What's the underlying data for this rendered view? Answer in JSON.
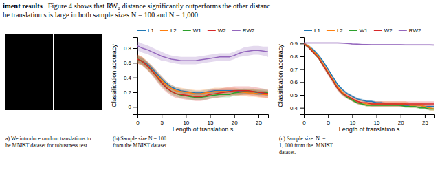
{
  "annotations": [
    "iment results",
    "   Figure 4 shows that RW₂ distance significantly outperforms the other distanc",
    "he translation s is large in both sample sizes N = 100 and N = 1,000.",
    "a) We introduce random translations to",
    "he MNIST dataset for robustness test."
  ],
  "chart_data": [
    {
      "type": "line",
      "xlabel": "Length of translation s",
      "ylabel": "Classification accuracy",
      "annotations": [
        "(b) Sample size N = 100",
        "from the MNIST dataset."
      ],
      "legend": "top",
      "xlim": [
        0,
        27
      ],
      "xticks": [
        0,
        5,
        10,
        15,
        20,
        25
      ],
      "ylim": [
        -0.1,
        0.95
      ],
      "yticks": [
        0,
        0.2,
        0.4,
        0.6,
        0.8
      ],
      "x": [
        0,
        1,
        2,
        3,
        4,
        5,
        6,
        7,
        8,
        9,
        10,
        11,
        12,
        13,
        14,
        15,
        16,
        17,
        18,
        19,
        20,
        21,
        22,
        23,
        24,
        25,
        26,
        27
      ],
      "series": [
        {
          "name": "L1",
          "values": [
            0.65,
            0.62,
            0.58,
            0.52,
            0.45,
            0.38,
            0.32,
            0.27,
            0.24,
            0.22,
            0.21,
            0.2,
            0.19,
            0.19,
            0.2,
            0.21,
            0.22,
            0.22,
            0.22,
            0.22,
            0.22,
            0.21,
            0.21,
            0.2,
            0.2,
            0.19,
            0.19,
            0.18
          ],
          "std": [
            0.04,
            0.04,
            0.04,
            0.04,
            0.04,
            0.04,
            0.03,
            0.03,
            0.03,
            0.03,
            0.03,
            0.03,
            0.03,
            0.03,
            0.03,
            0.03,
            0.03,
            0.03,
            0.03,
            0.03,
            0.03,
            0.03,
            0.03,
            0.03,
            0.03,
            0.03,
            0.03,
            0.03
          ]
        },
        {
          "name": "L2",
          "values": [
            0.65,
            0.62,
            0.57,
            0.5,
            0.43,
            0.36,
            0.3,
            0.25,
            0.22,
            0.21,
            0.2,
            0.19,
            0.18,
            0.18,
            0.19,
            0.2,
            0.21,
            0.21,
            0.21,
            0.21,
            0.21,
            0.2,
            0.2,
            0.19,
            0.19,
            0.18,
            0.17,
            0.17
          ],
          "std": [
            0.06,
            0.06,
            0.06,
            0.06,
            0.06,
            0.06,
            0.05,
            0.05,
            0.05,
            0.05,
            0.05,
            0.05,
            0.05,
            0.05,
            0.05,
            0.05,
            0.05,
            0.05,
            0.05,
            0.05,
            0.05,
            0.05,
            0.05,
            0.05,
            0.05,
            0.05,
            0.05,
            0.05
          ]
        },
        {
          "name": "W1",
          "values": [
            0.65,
            0.62,
            0.56,
            0.49,
            0.41,
            0.33,
            0.26,
            0.21,
            0.18,
            0.16,
            0.15,
            0.14,
            0.13,
            0.13,
            0.14,
            0.15,
            0.16,
            0.17,
            0.17,
            0.17,
            0.19,
            0.2,
            0.21,
            0.21,
            0.21,
            0.2,
            0.2,
            0.19
          ],
          "std": [
            0.05,
            0.05,
            0.05,
            0.05,
            0.05,
            0.05,
            0.04,
            0.04,
            0.04,
            0.04,
            0.04,
            0.04,
            0.04,
            0.04,
            0.04,
            0.04,
            0.04,
            0.04,
            0.04,
            0.04,
            0.04,
            0.04,
            0.04,
            0.04,
            0.04,
            0.04,
            0.04,
            0.04
          ]
        },
        {
          "name": "W2",
          "values": [
            0.65,
            0.62,
            0.56,
            0.49,
            0.41,
            0.33,
            0.26,
            0.21,
            0.18,
            0.17,
            0.16,
            0.15,
            0.14,
            0.14,
            0.15,
            0.17,
            0.18,
            0.19,
            0.2,
            0.21,
            0.22,
            0.22,
            0.22,
            0.22,
            0.21,
            0.2,
            0.19,
            0.18
          ],
          "std": [
            0.06,
            0.06,
            0.06,
            0.06,
            0.07,
            0.07,
            0.06,
            0.06,
            0.06,
            0.06,
            0.06,
            0.06,
            0.06,
            0.06,
            0.06,
            0.06,
            0.06,
            0.06,
            0.06,
            0.06,
            0.06,
            0.06,
            0.06,
            0.06,
            0.06,
            0.06,
            0.06,
            0.06
          ]
        },
        {
          "name": "RW2",
          "values": [
            0.83,
            0.8,
            0.78,
            0.75,
            0.72,
            0.69,
            0.67,
            0.65,
            0.64,
            0.63,
            0.63,
            0.63,
            0.63,
            0.64,
            0.65,
            0.66,
            0.67,
            0.68,
            0.68,
            0.68,
            0.7,
            0.73,
            0.75,
            0.76,
            0.77,
            0.77,
            0.76,
            0.75
          ],
          "std": [
            0.06,
            0.06,
            0.06,
            0.06,
            0.06,
            0.06,
            0.05,
            0.05,
            0.05,
            0.05,
            0.05,
            0.05,
            0.05,
            0.05,
            0.05,
            0.05,
            0.05,
            0.05,
            0.05,
            0.05,
            0.05,
            0.05,
            0.06,
            0.06,
            0.06,
            0.06,
            0.06,
            0.07
          ]
        }
      ]
    },
    {
      "type": "line",
      "xlabel": "Length of translation s",
      "ylabel": "Classification accuracy",
      "annotations": [
        "(c) Sample size  N  =",
        "1, 000 from the  MNIST",
        "dataset."
      ],
      "legend": "top",
      "xlim": [
        0,
        27
      ],
      "xticks": [
        0,
        5,
        10,
        15,
        20,
        25
      ],
      "ylim": [
        0.35,
        0.95
      ],
      "yticks": [
        0.4,
        0.5,
        0.6,
        0.7,
        0.8,
        0.9
      ],
      "x": [
        0,
        1,
        2,
        3,
        4,
        5,
        6,
        7,
        8,
        9,
        10,
        11,
        12,
        13,
        14,
        15,
        16,
        17,
        18,
        19,
        20,
        21,
        22,
        23,
        24,
        25,
        26,
        27
      ],
      "series": [
        {
          "name": "L1",
          "values": [
            0.9,
            0.88,
            0.85,
            0.81,
            0.76,
            0.7,
            0.64,
            0.58,
            0.54,
            0.51,
            0.49,
            0.47,
            0.46,
            0.45,
            0.45,
            0.44,
            0.44,
            0.43,
            0.43,
            0.43,
            0.42,
            0.42,
            0.42,
            0.42,
            0.42,
            0.41,
            0.41,
            0.41
          ],
          "std": [
            0.01,
            0.01,
            0.01,
            0.01,
            0.01,
            0.01,
            0.01,
            0.01,
            0.01,
            0.01,
            0.01,
            0.01,
            0.01,
            0.01,
            0.01,
            0.01,
            0.01,
            0.01,
            0.01,
            0.01,
            0.01,
            0.01,
            0.01,
            0.01,
            0.01,
            0.01,
            0.01,
            0.01
          ]
        },
        {
          "name": "L2",
          "values": [
            0.9,
            0.88,
            0.84,
            0.8,
            0.74,
            0.68,
            0.62,
            0.56,
            0.52,
            0.49,
            0.47,
            0.45,
            0.44,
            0.43,
            0.43,
            0.43,
            0.43,
            0.43,
            0.43,
            0.43,
            0.43,
            0.43,
            0.42,
            0.42,
            0.42,
            0.41,
            0.4,
            0.39
          ],
          "std": [
            0.01,
            0.01,
            0.01,
            0.01,
            0.02,
            0.02,
            0.02,
            0.02,
            0.02,
            0.02,
            0.02,
            0.02,
            0.02,
            0.02,
            0.02,
            0.02,
            0.02,
            0.02,
            0.02,
            0.02,
            0.02,
            0.02,
            0.02,
            0.02,
            0.02,
            0.02,
            0.02,
            0.02
          ]
        },
        {
          "name": "W1",
          "values": [
            0.9,
            0.87,
            0.83,
            0.79,
            0.73,
            0.67,
            0.61,
            0.55,
            0.51,
            0.48,
            0.46,
            0.44,
            0.43,
            0.42,
            0.42,
            0.42,
            0.42,
            0.42,
            0.42,
            0.42,
            0.42,
            0.41,
            0.41,
            0.41,
            0.4,
            0.4,
            0.39,
            0.39
          ],
          "std": [
            0.01,
            0.01,
            0.01,
            0.01,
            0.01,
            0.01,
            0.01,
            0.01,
            0.01,
            0.01,
            0.01,
            0.01,
            0.01,
            0.01,
            0.01,
            0.01,
            0.01,
            0.01,
            0.01,
            0.01,
            0.01,
            0.01,
            0.01,
            0.01,
            0.01,
            0.01,
            0.01,
            0.01
          ]
        },
        {
          "name": "W2",
          "values": [
            0.9,
            0.87,
            0.83,
            0.79,
            0.73,
            0.67,
            0.61,
            0.55,
            0.51,
            0.49,
            0.47,
            0.45,
            0.44,
            0.44,
            0.43,
            0.43,
            0.43,
            0.43,
            0.43,
            0.43,
            0.43,
            0.43,
            0.43,
            0.43,
            0.43,
            0.43,
            0.43,
            0.43
          ],
          "std": [
            0.01,
            0.01,
            0.01,
            0.01,
            0.02,
            0.02,
            0.02,
            0.02,
            0.02,
            0.02,
            0.02,
            0.02,
            0.02,
            0.02,
            0.02,
            0.02,
            0.02,
            0.02,
            0.02,
            0.02,
            0.02,
            0.02,
            0.02,
            0.02,
            0.02,
            0.02,
            0.02,
            0.02
          ]
        },
        {
          "name": "RW2",
          "values": [
            0.905,
            0.905,
            0.905,
            0.905,
            0.905,
            0.905,
            0.905,
            0.905,
            0.903,
            0.9,
            0.897,
            0.895,
            0.893,
            0.892,
            0.891,
            0.891,
            0.891,
            0.891,
            0.891,
            0.891,
            0.891,
            0.89,
            0.89,
            0.89,
            0.89,
            0.89,
            0.89,
            0.889
          ],
          "std": [
            0.005,
            0.005,
            0.005,
            0.005,
            0.005,
            0.005,
            0.005,
            0.005,
            0.005,
            0.005,
            0.005,
            0.005,
            0.005,
            0.005,
            0.005,
            0.005,
            0.005,
            0.005,
            0.005,
            0.005,
            0.005,
            0.005,
            0.005,
            0.005,
            0.005,
            0.005,
            0.005,
            0.005
          ]
        }
      ]
    }
  ]
}
